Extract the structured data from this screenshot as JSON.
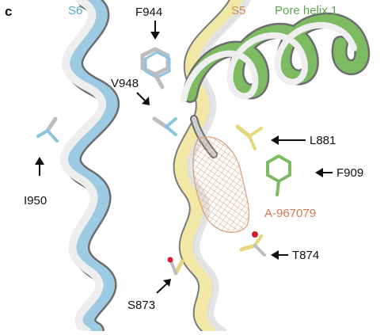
{
  "panel_letter": "c",
  "helix_labels": {
    "s6": {
      "text": "S6",
      "color": "#4fa8c9"
    },
    "s5": {
      "text": "S5",
      "color": "#c8944a"
    },
    "pore_helix": {
      "text": "Pore helix 1",
      "color": "#5aa64a"
    }
  },
  "residue_labels": {
    "f944": "F944",
    "v948": "V948",
    "i950": "I950",
    "l881": "L881",
    "f909": "F909",
    "t874": "T874",
    "s873": "S873"
  },
  "ligand_label": {
    "text": "A-967079",
    "color": "#d9794f"
  },
  "colors": {
    "s6_helix": "#9ccbe3",
    "s5_helix": "#f1e8a6",
    "pore_helix": "#7dbb63",
    "reference_helix": "#e4e4e4",
    "helix_outline": "#6d6d6d",
    "ligand_mesh": "#d9a07d",
    "oxygen": "#d0202a",
    "arrow": "#111111",
    "text": "#111111"
  }
}
